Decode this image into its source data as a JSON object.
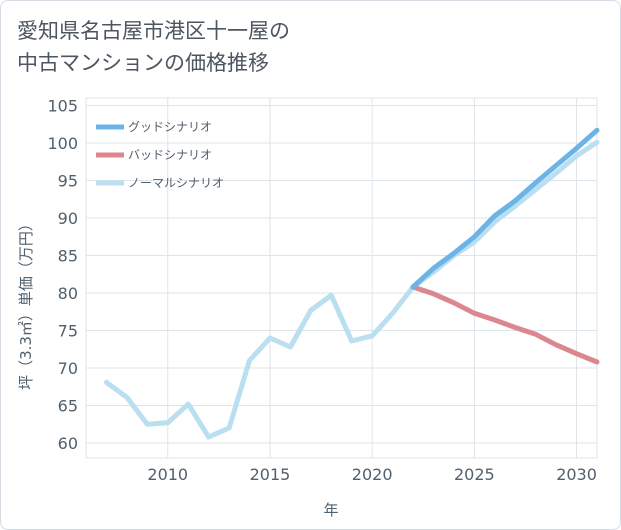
{
  "title_line1": "愛知県名古屋市港区十一屋の",
  "title_line2": "中古マンションの価格推移",
  "chart_data": {
    "type": "line",
    "xlabel": "年",
    "ylabel": "坪（3.3㎡）単価（万円）",
    "xlim": [
      2006,
      2031
    ],
    "ylim": [
      58,
      106
    ],
    "xticks": [
      2010,
      2015,
      2020,
      2025,
      2030
    ],
    "yticks": [
      60,
      65,
      70,
      75,
      80,
      85,
      90,
      95,
      100,
      105
    ],
    "grid": true,
    "legend_position": "top-left",
    "series": [
      {
        "name": "グッドシナリオ",
        "color": "#6cb4e8",
        "x": [
          2022,
          2023,
          2024,
          2025,
          2026,
          2027,
          2028,
          2029,
          2030,
          2031
        ],
        "y": [
          80.8,
          83.3,
          85.3,
          87.5,
          90.3,
          92.3,
          94.7,
          97.0,
          99.3,
          101.7
        ]
      },
      {
        "name": "バッドシナリオ",
        "color": "#dc8790",
        "x": [
          2022,
          2023,
          2024,
          2025,
          2026,
          2027,
          2028,
          2029,
          2030,
          2031
        ],
        "y": [
          80.8,
          79.9,
          78.7,
          77.3,
          76.4,
          75.4,
          74.5,
          73.1,
          71.9,
          70.8
        ]
      },
      {
        "name": "ノーマルシナリオ",
        "color": "#b9dff0",
        "x": [
          2007,
          2008,
          2009,
          2010,
          2011,
          2012,
          2013,
          2014,
          2015,
          2016,
          2017,
          2018,
          2019,
          2020,
          2021,
          2022,
          2023,
          2024,
          2025,
          2026,
          2027,
          2028,
          2029,
          2030,
          2031
        ],
        "y": [
          68.1,
          66.1,
          62.5,
          62.7,
          65.2,
          60.8,
          62.0,
          71.0,
          74.0,
          72.8,
          77.7,
          79.7,
          73.6,
          74.3,
          77.3,
          80.8,
          82.8,
          85.0,
          86.8,
          89.5,
          91.6,
          93.8,
          96.0,
          98.3,
          100.1
        ]
      }
    ]
  }
}
